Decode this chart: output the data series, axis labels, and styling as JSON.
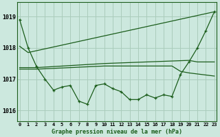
{
  "background_color": "#cce8de",
  "grid_color": "#aaccbb",
  "line_color": "#1a5c1a",
  "title": "Graphe pression niveau de la mer (hPa)",
  "xlim": [
    -0.3,
    23.3
  ],
  "ylim": [
    1015.65,
    1019.45
  ],
  "yticks": [
    1016,
    1017,
    1018,
    1019
  ],
  "xtick_labels": [
    "0",
    "1",
    "2",
    "3",
    "4",
    "5",
    "6",
    "7",
    "8",
    "9",
    "10",
    "11",
    "12",
    "13",
    "14",
    "15",
    "16",
    "17",
    "18",
    "19",
    "20",
    "21",
    "22",
    "23"
  ],
  "series1_x": [
    0,
    1,
    2,
    3,
    4,
    5,
    6,
    7,
    8,
    9,
    10,
    11,
    12,
    13,
    14,
    15,
    16,
    17,
    18,
    19,
    20,
    21,
    22,
    23
  ],
  "series1_y": [
    1018.9,
    1018.0,
    1017.4,
    1017.0,
    1016.65,
    1016.75,
    1016.8,
    1016.3,
    1016.2,
    1016.8,
    1016.85,
    1016.7,
    1016.6,
    1016.35,
    1016.35,
    1016.5,
    1016.4,
    1016.5,
    1016.45,
    1017.15,
    1017.55,
    1018.0,
    1018.55,
    1019.15
  ],
  "series2_x": [
    0,
    1,
    23
  ],
  "series2_y": [
    1018.05,
    1017.85,
    1019.15
  ],
  "series3_x": [
    0,
    2,
    10,
    20,
    21,
    22,
    23
  ],
  "series3_y": [
    1017.37,
    1017.37,
    1017.5,
    1017.6,
    1017.55,
    1017.55,
    1017.55
  ],
  "series4_x": [
    0,
    2,
    10,
    18,
    19,
    20,
    23
  ],
  "series4_y": [
    1017.32,
    1017.32,
    1017.42,
    1017.42,
    1017.25,
    1017.2,
    1017.1
  ]
}
